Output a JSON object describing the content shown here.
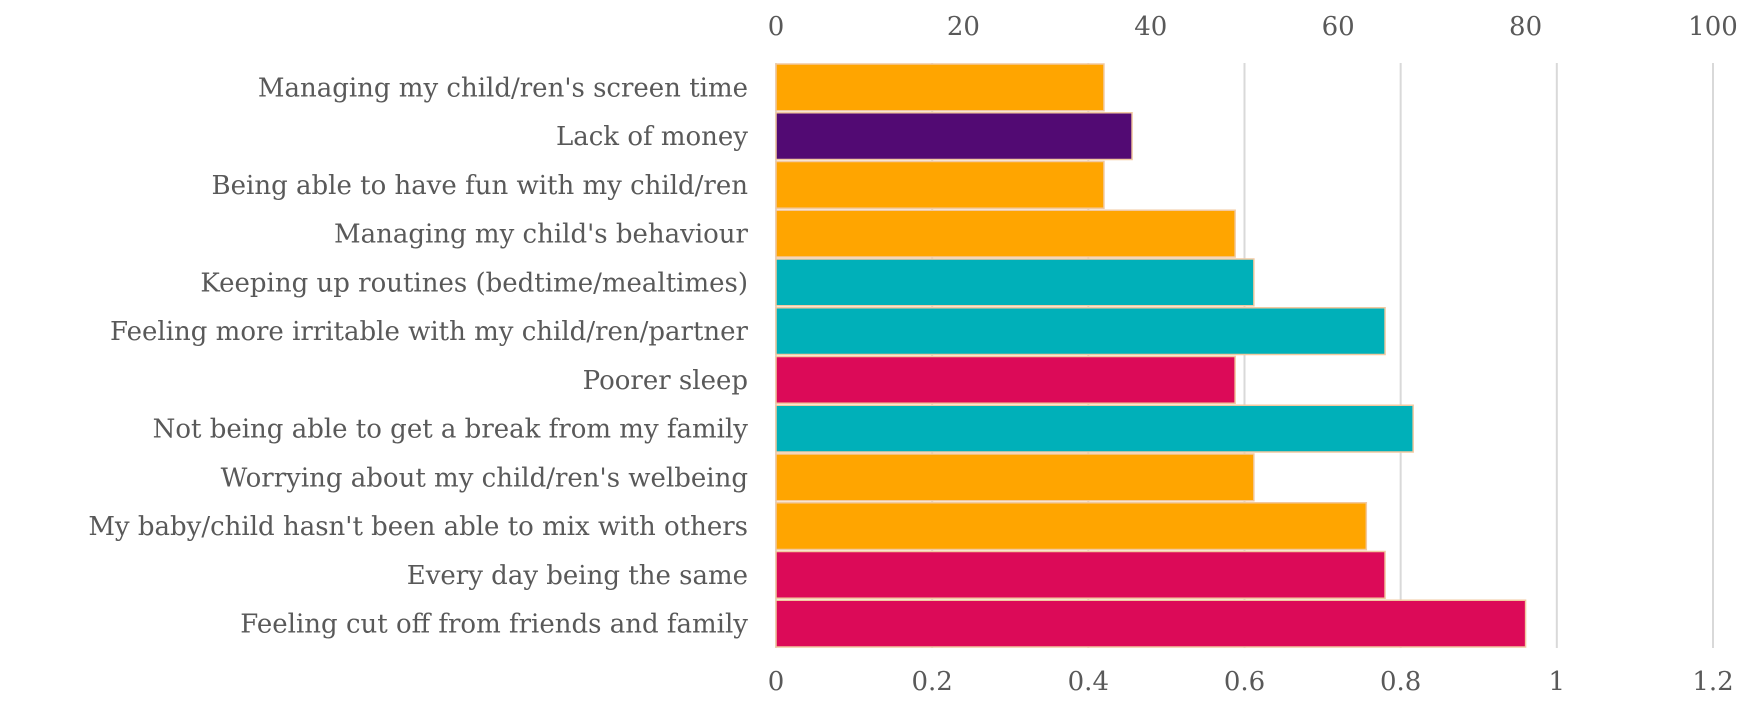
{
  "chart_data": {
    "type": "bar",
    "orientation": "horizontal",
    "categories": [
      "Managing my child/ren's screen time",
      "Lack of money",
      "Being able to have fun with my child/ren",
      "Managing my child's behaviour",
      "Keeping up routines (bedtime/mealtimes)",
      "Feeling more irritable with my child/ren/partner",
      "Poorer sleep",
      "Not being able to get a break from my family",
      "Worrying about my child/ren's welbeing",
      "My baby/child hasn't been able to mix with others",
      "Every day being the same",
      "Feeling cut off from friends and family"
    ],
    "values": [
      35,
      38,
      35,
      49,
      51,
      65,
      49,
      68,
      51,
      63,
      65,
      80
    ],
    "colors": [
      "#ffa500",
      "#520a73",
      "#ffa500",
      "#ffa500",
      "#00b0b9",
      "#00b0b9",
      "#dc0a58",
      "#00b0b9",
      "#ffa500",
      "#ffa500",
      "#dc0a58",
      "#dc0a58"
    ],
    "top_axis": {
      "ticks": [
        "0",
        "20",
        "40",
        "60",
        "80",
        "100"
      ],
      "range": [
        0,
        100
      ]
    },
    "bottom_axis": {
      "ticks": [
        "0",
        "0.2",
        "0.4",
        "0.6",
        "0.8",
        "1",
        "1.2"
      ],
      "range": [
        0,
        1.2
      ]
    },
    "gridlines": "vertical",
    "legend": "none"
  }
}
